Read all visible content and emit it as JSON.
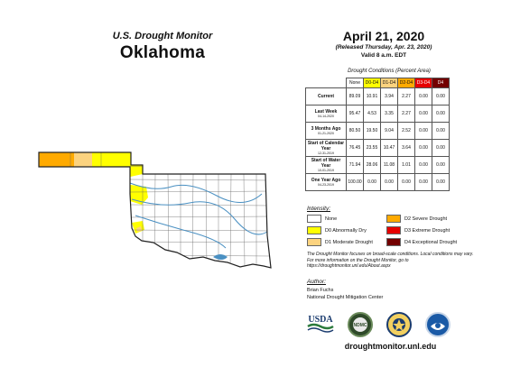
{
  "header": {
    "subtitle": "U.S. Drought Monitor",
    "state": "Oklahoma",
    "date": "April 21, 2020",
    "released": "(Released Thursday, Apr. 23, 2020)",
    "valid": "Valid 8 a.m. EDT"
  },
  "table": {
    "title": "Drought Conditions (Percent Area)",
    "columns": [
      "None",
      "D0-D4",
      "D1-D4",
      "D2-D4",
      "D3-D4",
      "D4"
    ],
    "column_colors": [
      "#ffffff",
      "#ffff00",
      "#fcd37f",
      "#ffaa00",
      "#e60000",
      "#730000"
    ],
    "rows": [
      {
        "label": "Current",
        "sub": "",
        "values": [
          "89.09",
          "10.91",
          "3.94",
          "2.27",
          "0.00",
          "0.00"
        ]
      },
      {
        "label": "Last Week",
        "sub": "04-14-2020",
        "values": [
          "95.47",
          "4.53",
          "3.35",
          "2.27",
          "0.00",
          "0.00"
        ]
      },
      {
        "label": "3 Months Ago",
        "sub": "01-21-2020",
        "values": [
          "80.50",
          "19.50",
          "9.04",
          "2.52",
          "0.00",
          "0.00"
        ]
      },
      {
        "label": "Start of Calendar Year",
        "sub": "12-31-2019",
        "values": [
          "76.45",
          "23.55",
          "10.47",
          "3.64",
          "0.00",
          "0.00"
        ]
      },
      {
        "label": "Start of Water Year",
        "sub": "10-01-2019",
        "values": [
          "71.94",
          "28.06",
          "11.08",
          "1.01",
          "0.00",
          "0.00"
        ]
      },
      {
        "label": "One Year Ago",
        "sub": "04-23-2019",
        "values": [
          "100.00",
          "0.00",
          "0.00",
          "0.00",
          "0.00",
          "0.00"
        ]
      }
    ]
  },
  "legend": {
    "title": "Intensity:",
    "items": [
      {
        "label": "None",
        "color": "#ffffff"
      },
      {
        "label": "D0 Abnormally Dry",
        "color": "#ffff00"
      },
      {
        "label": "D1 Moderate Drought",
        "color": "#fcd37f"
      },
      {
        "label": "D2 Severe Drought",
        "color": "#ffaa00"
      },
      {
        "label": "D3 Extreme Drought",
        "color": "#e60000"
      },
      {
        "label": "D4 Exceptional Drought",
        "color": "#730000"
      }
    ]
  },
  "note": "The Drought Monitor focuses on broad-scale conditions. Local conditions may vary. For more information on the Drought Monitor, go to https://droughtmonitor.unl.edu/About.aspx",
  "author": {
    "heading": "Author:",
    "name": "Brian Fuchs",
    "org": "National Drought Mitigation Center"
  },
  "logos": {
    "usda": "USDA",
    "ndmc": "NDMC"
  },
  "site": "droughtmonitor.unl.edu",
  "map": {
    "colors": {
      "none": "#ffffff",
      "d0": "#ffff00",
      "d1": "#fcd37f",
      "d2": "#ffaa00",
      "water": "#4a90c2",
      "county": "#666666",
      "border": "#222222"
    }
  }
}
